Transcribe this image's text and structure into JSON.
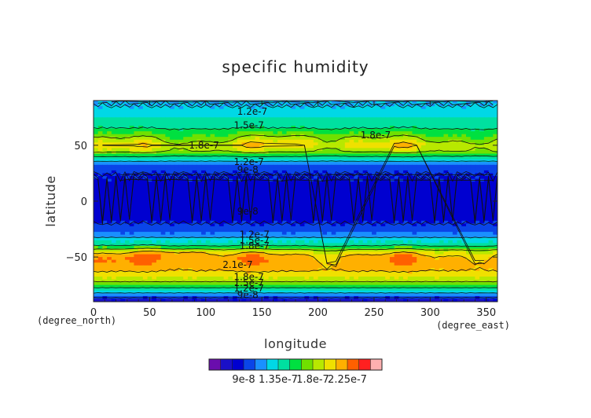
{
  "chart_data": {
    "type": "heatmap",
    "title": "specific humidity",
    "xlabel": "longitude",
    "ylabel": "latitude",
    "x_unit": "(degree_east)",
    "y_unit": "(degree_north)",
    "xlim": [
      0,
      360
    ],
    "ylim": [
      -90,
      90
    ],
    "x_ticks": [
      0,
      50,
      100,
      150,
      200,
      250,
      300,
      350
    ],
    "y_ticks": [
      -50,
      0,
      50
    ],
    "colorbar": {
      "levels": [
        6e-08,
        7.5e-08,
        9e-08,
        1.05e-07,
        1.2e-07,
        1.35e-07,
        1.5e-07,
        1.65e-07,
        1.8e-07,
        1.95e-07,
        2.1e-07,
        2.25e-07,
        2.4e-07
      ],
      "colors": [
        "#6a0dad",
        "#1a10c8",
        "#0000d0",
        "#0a45e8",
        "#1a90ff",
        "#00d8e6",
        "#00e0a0",
        "#00e040",
        "#70e000",
        "#b8e800",
        "#f0e000",
        "#ffb000",
        "#ff6000",
        "#ff2020",
        "#ffb0b0"
      ],
      "tick_labels": [
        "9e-8",
        "1.35e-7",
        "1.8e-7",
        "2.25e-7"
      ],
      "tick_values": [
        9e-08,
        1.35e-07,
        1.8e-07,
        2.25e-07
      ]
    },
    "zonal_profile": {
      "lat": [
        -90,
        -85,
        -80,
        -75,
        -70,
        -65,
        -60,
        -55,
        -50,
        -45,
        -40,
        -35,
        -30,
        -25,
        -20,
        -15,
        -10,
        -5,
        0,
        5,
        10,
        15,
        20,
        25,
        30,
        35,
        40,
        45,
        50,
        55,
        60,
        65,
        70,
        75,
        80,
        85,
        90
      ],
      "value": [
        6.5e-08,
        1e-07,
        1.35e-07,
        1.65e-07,
        1.9e-07,
        2.05e-07,
        2.15e-07,
        2.2e-07,
        2.18e-07,
        1.95e-07,
        1.5e-07,
        1.3e-07,
        1.1e-07,
        9.5e-08,
        9e-08,
        8.8e-08,
        8.5e-08,
        8.5e-08,
        8.5e-08,
        8.5e-08,
        8.7e-08,
        8.8e-08,
        8.9e-08,
        9e-08,
        9.5e-08,
        1.15e-07,
        1.5e-07,
        1.85e-07,
        2e-07,
        1.8e-07,
        1.65e-07,
        1.5e-07,
        1.42e-07,
        1.35e-07,
        1.25e-07,
        1.2e-07,
        1.2e-07
      ]
    },
    "contour_labels": [
      {
        "text": "1.2e-7",
        "lon": 128,
        "lat": 80
      },
      {
        "text": "1.5e-7",
        "lon": 125,
        "lat": 68
      },
      {
        "text": "1.8e-7",
        "lon": 238,
        "lat": 59
      },
      {
        "text": "1.8e-7",
        "lon": 85,
        "lat": 50
      },
      {
        "text": "1.2e-7",
        "lon": 125,
        "lat": 35
      },
      {
        "text": "9e-8",
        "lon": 128,
        "lat": 28
      },
      {
        "text": "9e-8",
        "lon": 128,
        "lat": -9
      },
      {
        "text": "1.2e-7",
        "lon": 130,
        "lat": -30
      },
      {
        "text": "1.5e-7",
        "lon": 130,
        "lat": -35
      },
      {
        "text": "1.8e-7",
        "lon": 130,
        "lat": -40
      },
      {
        "text": "2.1e-7",
        "lon": 115,
        "lat": -57
      },
      {
        "text": "1.8e-7",
        "lon": 125,
        "lat": -68
      },
      {
        "text": "1.5e-7",
        "lon": 125,
        "lat": -73
      },
      {
        "text": "1.2e-7",
        "lon": 125,
        "lat": -78
      },
      {
        "text": "9e-8",
        "lon": 128,
        "lat": -84
      }
    ]
  },
  "colors": {
    "background": "#ffffff",
    "axis": "#222222"
  }
}
